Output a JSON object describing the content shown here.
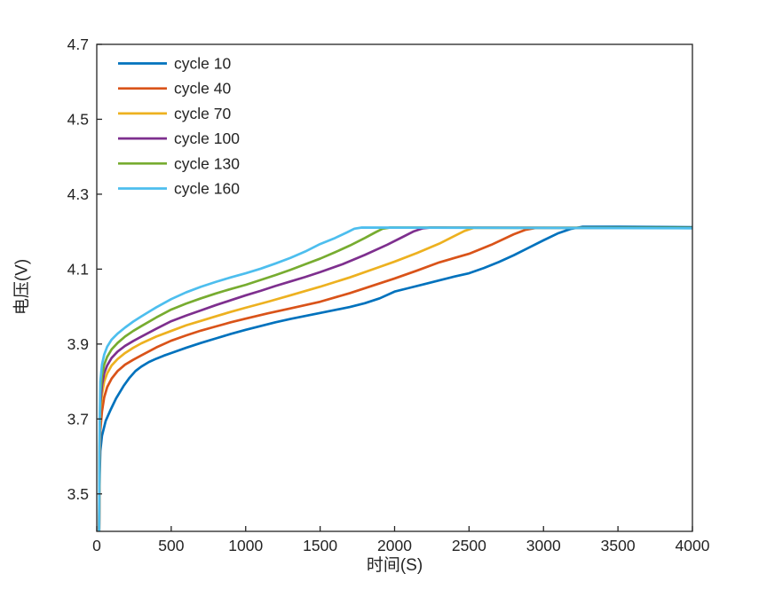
{
  "chart_data": {
    "type": "line",
    "title": "",
    "xlabel": "时间(S)",
    "ylabel": "电压(V)",
    "xlim": [
      0,
      4000
    ],
    "ylim": [
      3.4,
      4.7
    ],
    "grid": false,
    "legend_position": "top-left-inside",
    "axis_color": "#242424",
    "background_color": "#ffffff",
    "plateau_voltage": 4.21,
    "x_ticks": [
      0,
      500,
      1000,
      1500,
      2000,
      2500,
      3000,
      3500,
      4000
    ],
    "x_tick_labels": [
      "0",
      "500",
      "1000",
      "1500",
      "2000",
      "2500",
      "3000",
      "3500",
      "4000"
    ],
    "y_ticks": [
      3.5,
      3.7,
      3.9,
      4.1,
      4.3,
      4.5,
      4.7
    ],
    "y_tick_labels": [
      "3.5",
      "3.7",
      "3.9",
      "4.1",
      "4.3",
      "4.5",
      "4.7"
    ],
    "series": [
      {
        "name": "cycle 10",
        "color": "#0072BD",
        "points": [
          [
            16,
            3.4
          ],
          [
            18,
            3.5
          ],
          [
            20,
            3.555
          ],
          [
            24,
            3.615
          ],
          [
            35,
            3.655
          ],
          [
            60,
            3.695
          ],
          [
            90,
            3.722
          ],
          [
            130,
            3.755
          ],
          [
            180,
            3.788
          ],
          [
            220,
            3.81
          ],
          [
            260,
            3.828
          ],
          [
            300,
            3.84
          ],
          [
            350,
            3.852
          ],
          [
            400,
            3.861
          ],
          [
            450,
            3.869
          ],
          [
            500,
            3.876
          ],
          [
            600,
            3.89
          ],
          [
            700,
            3.903
          ],
          [
            800,
            3.915
          ],
          [
            900,
            3.927
          ],
          [
            1000,
            3.938
          ],
          [
            1100,
            3.948
          ],
          [
            1200,
            3.958
          ],
          [
            1300,
            3.967
          ],
          [
            1400,
            3.975
          ],
          [
            1500,
            3.983
          ],
          [
            1600,
            3.991
          ],
          [
            1700,
            3.999
          ],
          [
            1800,
            4.009
          ],
          [
            1900,
            4.022
          ],
          [
            2000,
            4.04
          ],
          [
            2100,
            4.05
          ],
          [
            2200,
            4.06
          ],
          [
            2300,
            4.07
          ],
          [
            2400,
            4.08
          ],
          [
            2500,
            4.089
          ],
          [
            2600,
            4.103
          ],
          [
            2700,
            4.119
          ],
          [
            2800,
            4.137
          ],
          [
            2900,
            4.157
          ],
          [
            3000,
            4.177
          ],
          [
            3100,
            4.196
          ],
          [
            3180,
            4.207
          ],
          [
            3260,
            4.213
          ],
          [
            3500,
            4.213
          ],
          [
            4000,
            4.212
          ]
        ]
      },
      {
        "name": "cycle 40",
        "color": "#D95319",
        "points": [
          [
            16,
            3.4
          ],
          [
            18,
            3.52
          ],
          [
            20,
            3.6
          ],
          [
            24,
            3.67
          ],
          [
            35,
            3.72
          ],
          [
            50,
            3.758
          ],
          [
            70,
            3.785
          ],
          [
            100,
            3.808
          ],
          [
            140,
            3.828
          ],
          [
            190,
            3.845
          ],
          [
            245,
            3.858
          ],
          [
            300,
            3.87
          ],
          [
            400,
            3.891
          ],
          [
            500,
            3.909
          ],
          [
            600,
            3.923
          ],
          [
            700,
            3.936
          ],
          [
            800,
            3.947
          ],
          [
            900,
            3.958
          ],
          [
            1000,
            3.968
          ],
          [
            1150,
            3.982
          ],
          [
            1300,
            3.995
          ],
          [
            1500,
            4.013
          ],
          [
            1700,
            4.036
          ],
          [
            1900,
            4.062
          ],
          [
            2000,
            4.075
          ],
          [
            2150,
            4.096
          ],
          [
            2300,
            4.118
          ],
          [
            2500,
            4.141
          ],
          [
            2650,
            4.165
          ],
          [
            2800,
            4.193
          ],
          [
            2880,
            4.205
          ],
          [
            2950,
            4.21
          ],
          [
            4000,
            4.21
          ]
        ]
      },
      {
        "name": "cycle 70",
        "color": "#EDB120",
        "points": [
          [
            16,
            3.4
          ],
          [
            18,
            3.55
          ],
          [
            20,
            3.64
          ],
          [
            24,
            3.72
          ],
          [
            35,
            3.765
          ],
          [
            50,
            3.8
          ],
          [
            70,
            3.822
          ],
          [
            100,
            3.843
          ],
          [
            140,
            3.86
          ],
          [
            190,
            3.876
          ],
          [
            245,
            3.89
          ],
          [
            300,
            3.902
          ],
          [
            400,
            3.92
          ],
          [
            500,
            3.935
          ],
          [
            600,
            3.95
          ],
          [
            700,
            3.962
          ],
          [
            800,
            3.974
          ],
          [
            900,
            3.986
          ],
          [
            1000,
            3.997
          ],
          [
            1150,
            4.013
          ],
          [
            1300,
            4.03
          ],
          [
            1500,
            4.053
          ],
          [
            1700,
            4.078
          ],
          [
            1900,
            4.106
          ],
          [
            2000,
            4.12
          ],
          [
            2150,
            4.143
          ],
          [
            2300,
            4.168
          ],
          [
            2400,
            4.188
          ],
          [
            2470,
            4.202
          ],
          [
            2530,
            4.21
          ],
          [
            4000,
            4.21
          ]
        ]
      },
      {
        "name": "cycle 100",
        "color": "#7E2F8E",
        "points": [
          [
            16,
            3.4
          ],
          [
            18,
            3.56
          ],
          [
            20,
            3.65
          ],
          [
            24,
            3.74
          ],
          [
            35,
            3.79
          ],
          [
            50,
            3.822
          ],
          [
            70,
            3.843
          ],
          [
            100,
            3.863
          ],
          [
            140,
            3.88
          ],
          [
            190,
            3.895
          ],
          [
            245,
            3.908
          ],
          [
            300,
            3.92
          ],
          [
            400,
            3.941
          ],
          [
            500,
            3.961
          ],
          [
            600,
            3.976
          ],
          [
            700,
            3.99
          ],
          [
            800,
            4.004
          ],
          [
            900,
            4.017
          ],
          [
            1000,
            4.03
          ],
          [
            1100,
            4.042
          ],
          [
            1200,
            4.055
          ],
          [
            1300,
            4.067
          ],
          [
            1400,
            4.079
          ],
          [
            1500,
            4.092
          ],
          [
            1650,
            4.113
          ],
          [
            1800,
            4.138
          ],
          [
            1950,
            4.165
          ],
          [
            2050,
            4.185
          ],
          [
            2130,
            4.201
          ],
          [
            2190,
            4.209
          ],
          [
            2240,
            4.211
          ],
          [
            4000,
            4.21
          ]
        ]
      },
      {
        "name": "cycle 130",
        "color": "#77AC30",
        "points": [
          [
            16,
            3.4
          ],
          [
            18,
            3.58
          ],
          [
            20,
            3.67
          ],
          [
            24,
            3.77
          ],
          [
            35,
            3.815
          ],
          [
            50,
            3.845
          ],
          [
            70,
            3.866
          ],
          [
            100,
            3.886
          ],
          [
            140,
            3.903
          ],
          [
            190,
            3.92
          ],
          [
            245,
            3.935
          ],
          [
            300,
            3.948
          ],
          [
            400,
            3.971
          ],
          [
            500,
            3.992
          ],
          [
            600,
            4.008
          ],
          [
            700,
            4.022
          ],
          [
            800,
            4.035
          ],
          [
            900,
            4.047
          ],
          [
            1000,
            4.058
          ],
          [
            1100,
            4.071
          ],
          [
            1200,
            4.084
          ],
          [
            1300,
            4.098
          ],
          [
            1400,
            4.113
          ],
          [
            1500,
            4.128
          ],
          [
            1600,
            4.145
          ],
          [
            1700,
            4.163
          ],
          [
            1800,
            4.183
          ],
          [
            1870,
            4.198
          ],
          [
            1920,
            4.208
          ],
          [
            1970,
            4.211
          ],
          [
            4000,
            4.21
          ]
        ]
      },
      {
        "name": "cycle 160",
        "color": "#4DBEEE",
        "points": [
          [
            16,
            3.4
          ],
          [
            18,
            3.6
          ],
          [
            20,
            3.7
          ],
          [
            24,
            3.8
          ],
          [
            35,
            3.845
          ],
          [
            50,
            3.872
          ],
          [
            70,
            3.893
          ],
          [
            100,
            3.912
          ],
          [
            140,
            3.928
          ],
          [
            190,
            3.944
          ],
          [
            245,
            3.96
          ],
          [
            300,
            3.974
          ],
          [
            350,
            3.986
          ],
          [
            400,
            3.998
          ],
          [
            450,
            4.009
          ],
          [
            500,
            4.02
          ],
          [
            600,
            4.038
          ],
          [
            700,
            4.053
          ],
          [
            800,
            4.066
          ],
          [
            900,
            4.078
          ],
          [
            1000,
            4.089
          ],
          [
            1100,
            4.101
          ],
          [
            1200,
            4.115
          ],
          [
            1300,
            4.13
          ],
          [
            1400,
            4.147
          ],
          [
            1500,
            4.167
          ],
          [
            1600,
            4.183
          ],
          [
            1680,
            4.198
          ],
          [
            1730,
            4.208
          ],
          [
            1780,
            4.211
          ],
          [
            4000,
            4.209
          ]
        ]
      }
    ]
  },
  "layout_text": {
    "xlabel": "时间(S)",
    "ylabel": "电压(V)"
  }
}
